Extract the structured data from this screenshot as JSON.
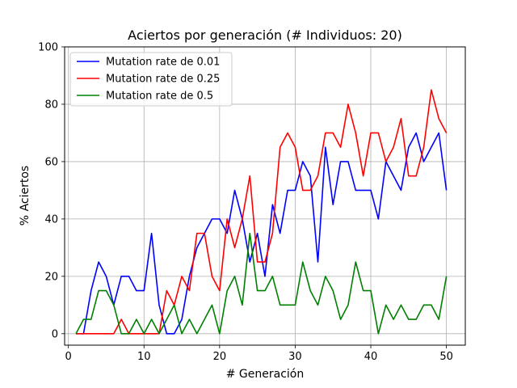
{
  "chart_data": {
    "type": "line",
    "title": "Aciertos por generación (# Individuos: 20)",
    "xlabel": "# Generación",
    "ylabel": "% Aciertos",
    "xlim": [
      -0.5,
      52.5
    ],
    "ylim": [
      -4,
      100
    ],
    "xticks": [
      0,
      10,
      20,
      30,
      40,
      50
    ],
    "yticks": [
      0,
      20,
      40,
      60,
      80,
      100
    ],
    "grid": true,
    "legend_position": "upper-left",
    "x": [
      1,
      2,
      3,
      4,
      5,
      6,
      7,
      8,
      9,
      10,
      11,
      12,
      13,
      14,
      15,
      16,
      17,
      18,
      19,
      20,
      21,
      22,
      23,
      24,
      25,
      26,
      27,
      28,
      29,
      30,
      31,
      32,
      33,
      34,
      35,
      36,
      37,
      38,
      39,
      40,
      41,
      42,
      43,
      44,
      45,
      46,
      47,
      48,
      49,
      50
    ],
    "series": [
      {
        "name": "Mutation rate de 0.01",
        "color": "#0000ff",
        "values": [
          0,
          0,
          15,
          25,
          20,
          10,
          20,
          20,
          15,
          15,
          35,
          10,
          0,
          0,
          5,
          20,
          30,
          35,
          40,
          40,
          35,
          50,
          40,
          25,
          35,
          20,
          45,
          35,
          50,
          50,
          60,
          55,
          25,
          65,
          45,
          60,
          60,
          50,
          50,
          50,
          40,
          60,
          55,
          50,
          65,
          70,
          60,
          65,
          70,
          50
        ]
      },
      {
        "name": "Mutation rate de 0.25",
        "color": "#ff0000",
        "values": [
          0,
          0,
          0,
          0,
          0,
          0,
          5,
          0,
          0,
          0,
          0,
          0,
          15,
          10,
          20,
          15,
          35,
          35,
          20,
          15,
          40,
          30,
          40,
          55,
          25,
          25,
          35,
          65,
          70,
          65,
          50,
          50,
          55,
          70,
          70,
          65,
          80,
          70,
          55,
          70,
          70,
          60,
          65,
          75,
          55,
          55,
          65,
          85,
          75,
          70
        ]
      },
      {
        "name": "Mutation rate de 0.5",
        "color": "#008000",
        "values": [
          0,
          5,
          5,
          15,
          15,
          10,
          0,
          0,
          5,
          0,
          5,
          0,
          5,
          10,
          0,
          5,
          0,
          5,
          10,
          0,
          15,
          20,
          10,
          35,
          15,
          15,
          20,
          10,
          10,
          10,
          25,
          15,
          10,
          20,
          15,
          5,
          10,
          25,
          15,
          15,
          0,
          10,
          5,
          10,
          5,
          5,
          10,
          10,
          5,
          20
        ]
      }
    ]
  }
}
